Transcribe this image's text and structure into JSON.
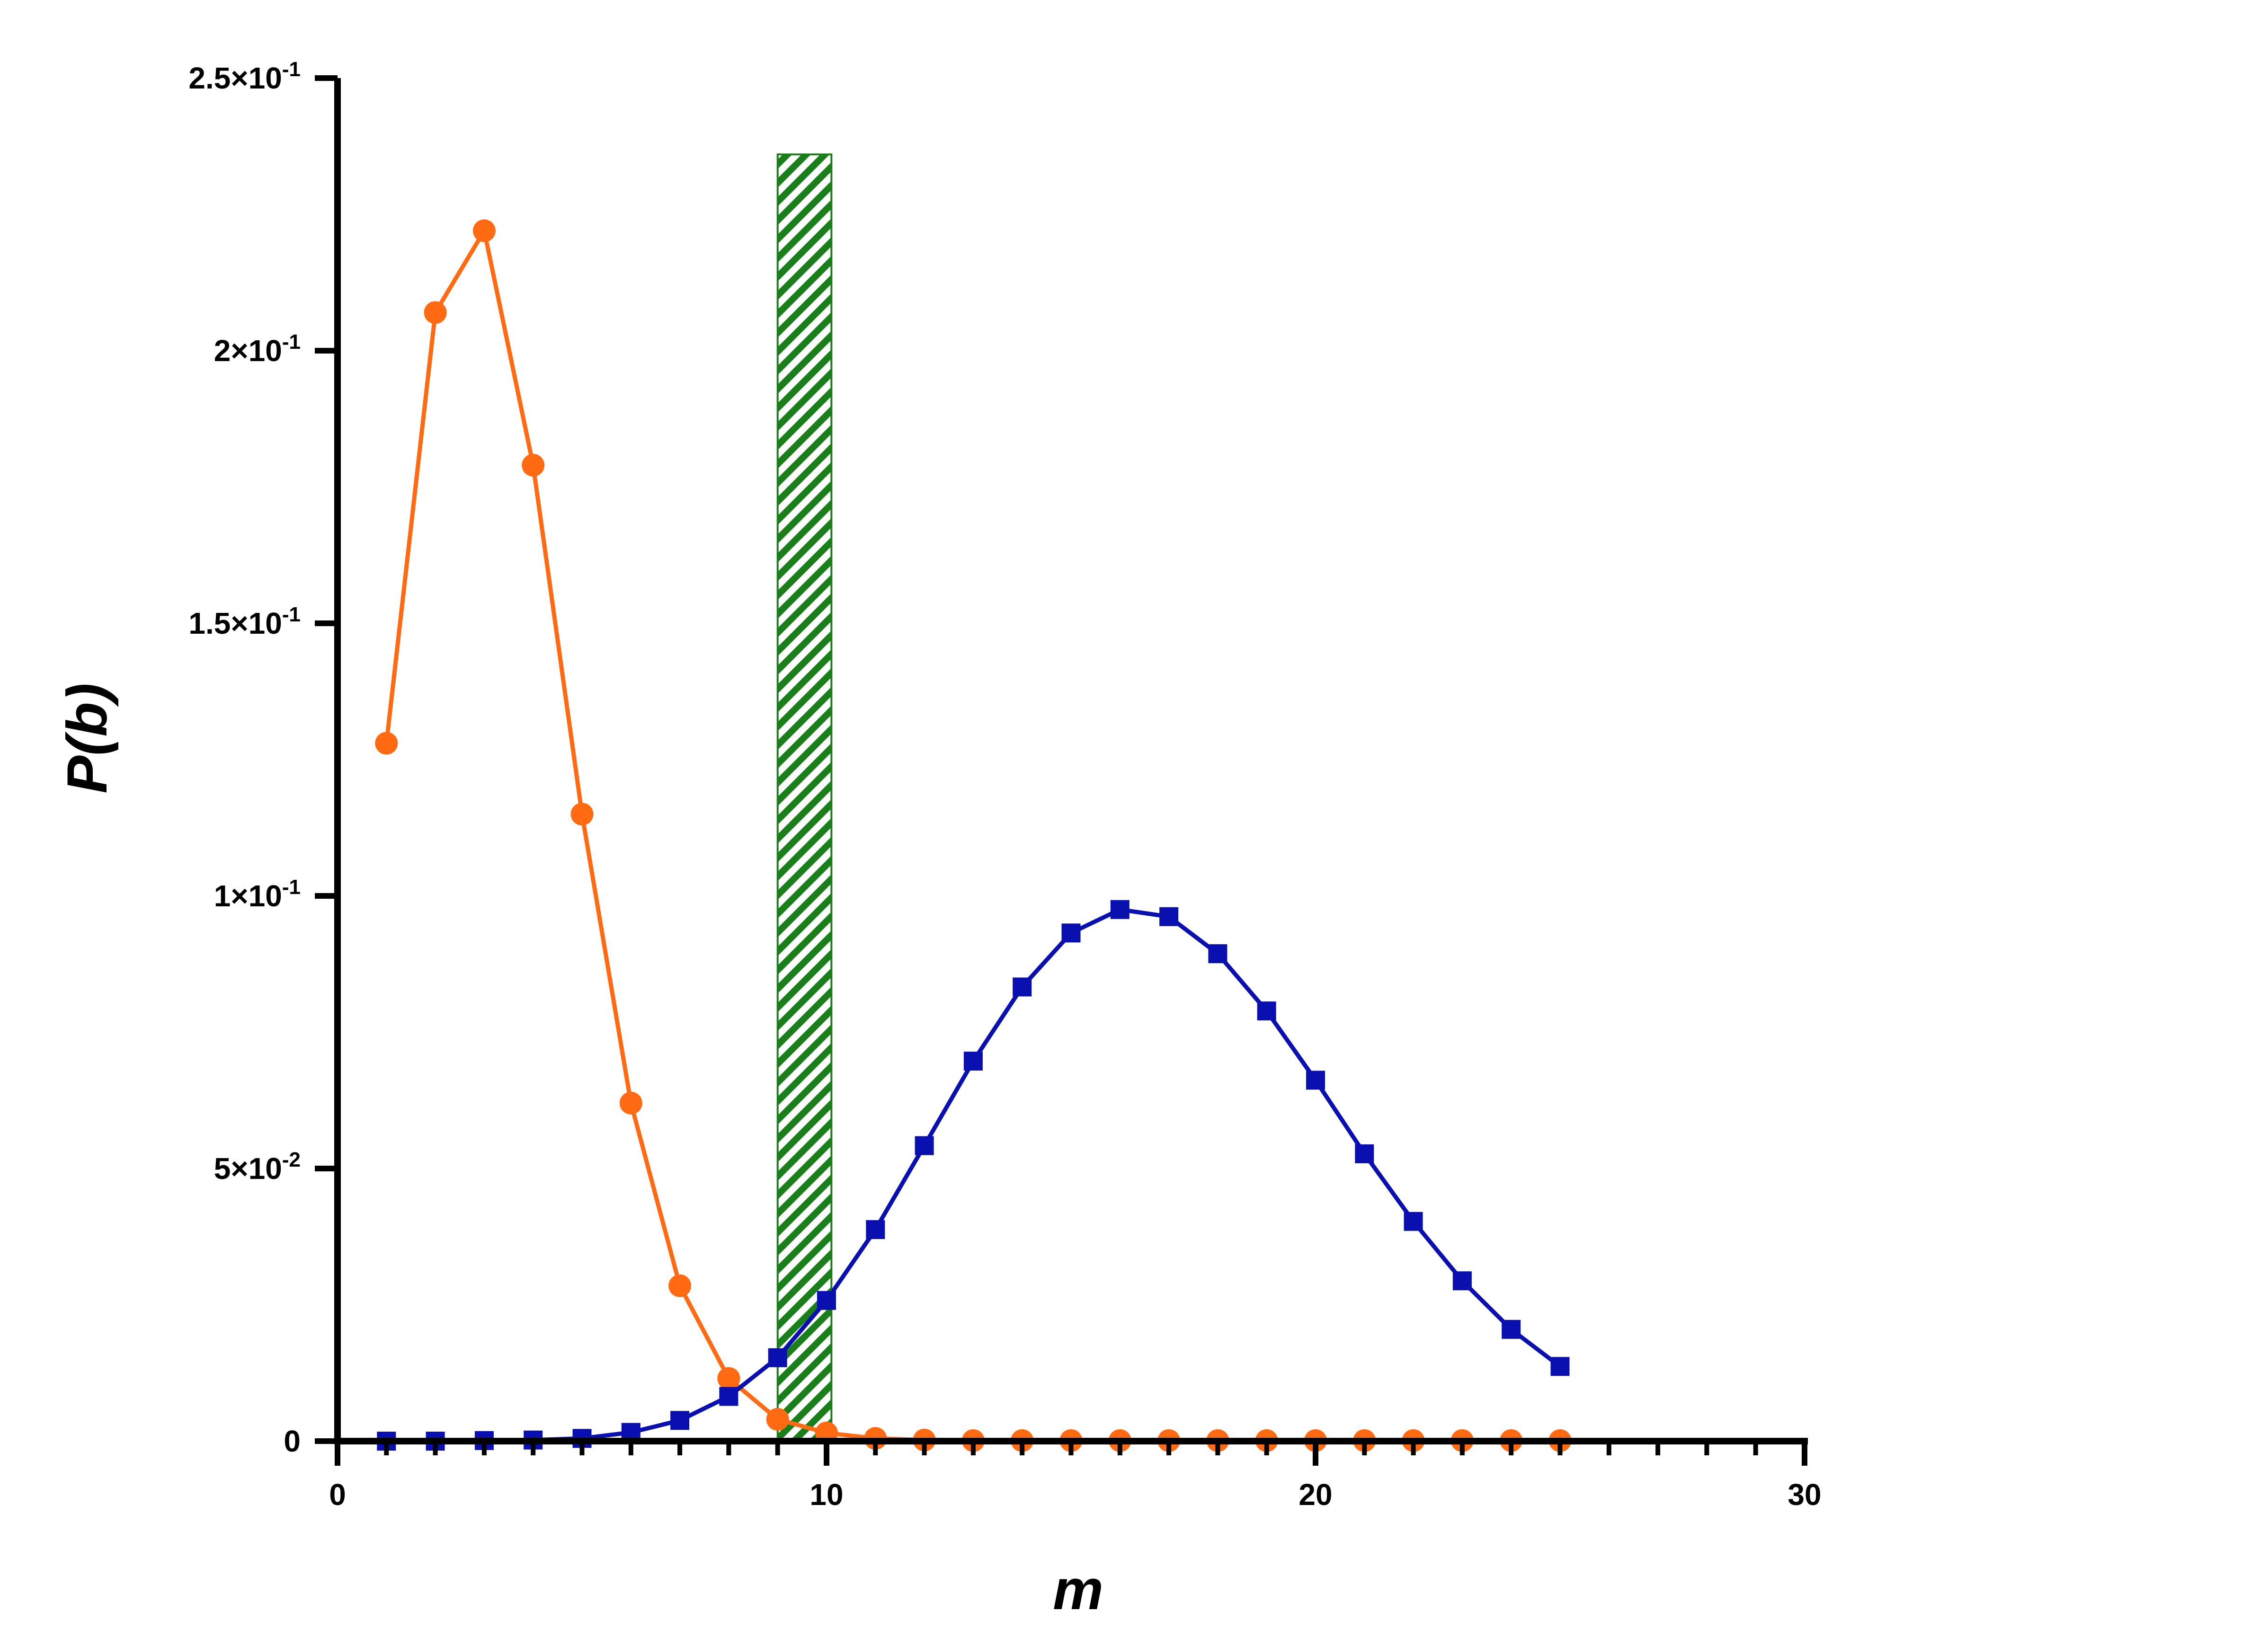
{
  "chart_data": {
    "type": "line",
    "xlabel": "m",
    "ylabel": "P(b)",
    "xlim": [
      0,
      30
    ],
    "ylim": [
      0,
      0.25
    ],
    "x_ticks": [
      0,
      10,
      20,
      30
    ],
    "x_tick_labels": [
      "0",
      "10",
      "20",
      "30"
    ],
    "y_ticks": [
      0,
      0.05,
      0.1,
      0.15,
      0.2,
      0.25
    ],
    "y_tick_labels": [
      {
        "base": "0",
        "exp": ""
      },
      {
        "base": "5×10",
        "exp": "-2"
      },
      {
        "base": "1×10",
        "exp": "-1"
      },
      {
        "base": "1.5×10",
        "exp": "-1"
      },
      {
        "base": "2×10",
        "exp": "-1"
      },
      {
        "base": "2.5×10",
        "exp": "-1"
      }
    ],
    "grid": false,
    "series": [
      {
        "marker": "circle",
        "color": "#FF6A13",
        "x": [
          1,
          2,
          3,
          4,
          5,
          6,
          7,
          8,
          9,
          10,
          11,
          12,
          13,
          14,
          15,
          16,
          17,
          18,
          19,
          20,
          21,
          22,
          23,
          24,
          25
        ],
        "y": [
          0.128,
          0.207,
          0.222,
          0.179,
          0.115,
          0.062,
          0.0285,
          0.0115,
          0.004,
          0.0015,
          0.0005,
          0.0002,
          0.0001,
          0.0001,
          0.0001,
          0.0001,
          0.0001,
          0.0001,
          0.0001,
          0.0001,
          0.0001,
          0.0001,
          0.0001,
          0.0001,
          0.0001
        ]
      },
      {
        "marker": "square",
        "color": "#0A10B0",
        "x": [
          1,
          2,
          3,
          4,
          5,
          6,
          7,
          8,
          9,
          10,
          11,
          12,
          13,
          14,
          15,
          16,
          17,
          18,
          19,
          20,
          21,
          22,
          23,
          24,
          25
        ],
        "y": [
          0.0,
          0.0,
          0.0001,
          0.0002,
          0.0005,
          0.0016,
          0.0038,
          0.0082,
          0.0153,
          0.0258,
          0.0388,
          0.0542,
          0.0697,
          0.0833,
          0.0932,
          0.0975,
          0.0962,
          0.0894,
          0.0789,
          0.0662,
          0.0527,
          0.0403,
          0.0294,
          0.0205,
          0.0137
        ]
      }
    ],
    "shaded_band": {
      "x_start": 9,
      "x_end": 10.1,
      "y_top": 0.236,
      "color": "#1A7F1A",
      "pattern": "diagonal-hatch"
    }
  }
}
